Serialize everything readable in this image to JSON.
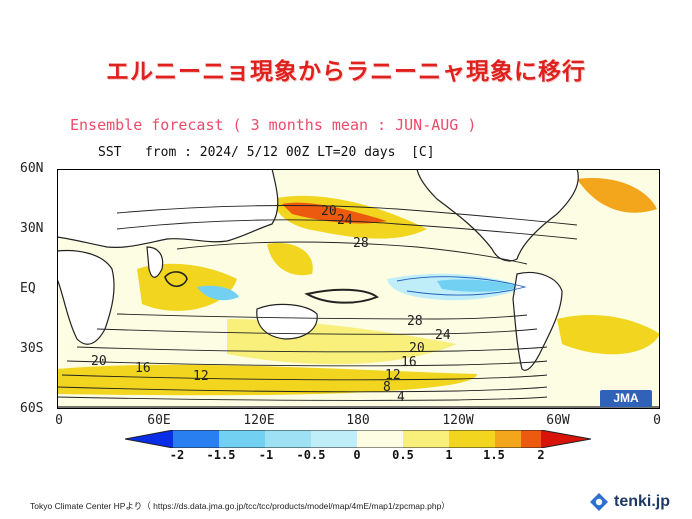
{
  "headline": "エルニーニョ現象からラニーニャ現象に移行",
  "map": {
    "title": "Ensemble forecast ( 3 months mean : JUN-AUG )",
    "subtitle": "SST   from : 2024/ 5/12 00Z LT=20 days  [C]",
    "lat_labels": [
      "60N",
      "30N",
      "EQ",
      "30S",
      "60S"
    ],
    "lon_labels": [
      "0",
      "60E",
      "120E",
      "180",
      "120W",
      "60W",
      "0"
    ],
    "contour_labels": [
      "20",
      "24",
      "28",
      "28",
      "24",
      "20",
      "16",
      "12",
      "8",
      "4",
      "20",
      "16",
      "12"
    ],
    "agency_badge": "JMA",
    "colors": {
      "deep_blue": "#0a2ee6",
      "blue": "#2a7ff0",
      "light_blue": "#72d0f2",
      "pale_blue": "#bfeef8",
      "neutral": "#fdfde4",
      "pale_yellow": "#f8f07a",
      "yellow": "#f2d51e",
      "orange": "#f3a61c",
      "dark_orange": "#ec5a10",
      "red": "#d8140a"
    }
  },
  "colorbar": {
    "labels": [
      "-2",
      "-1.5",
      "-1",
      "-0.5",
      "0",
      "0.5",
      "1",
      "1.5",
      "2"
    ]
  },
  "footer": {
    "credit": "Tokyo Climate Center HPより（ https://ds.data.jma.go.jp/tcc/tcc/products/model/map/4mE/map1/zpcmap.php）",
    "logo_text": "tenki.jp"
  }
}
